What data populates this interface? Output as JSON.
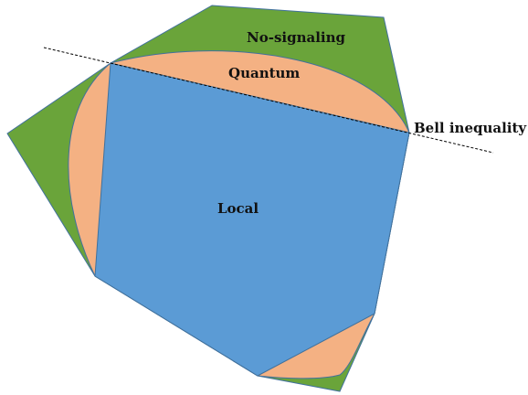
{
  "labels": {
    "no_signaling": "No-signaling",
    "quantum": "Quantum",
    "local": "Local",
    "bell_inequality": "Bell inequality"
  },
  "colors": {
    "no_signaling_fill": "#6aa43a",
    "quantum_fill": "#f4b183",
    "local_fill": "#5b9bd5",
    "outline": "#41719c",
    "bell_line": "#000000"
  }
}
